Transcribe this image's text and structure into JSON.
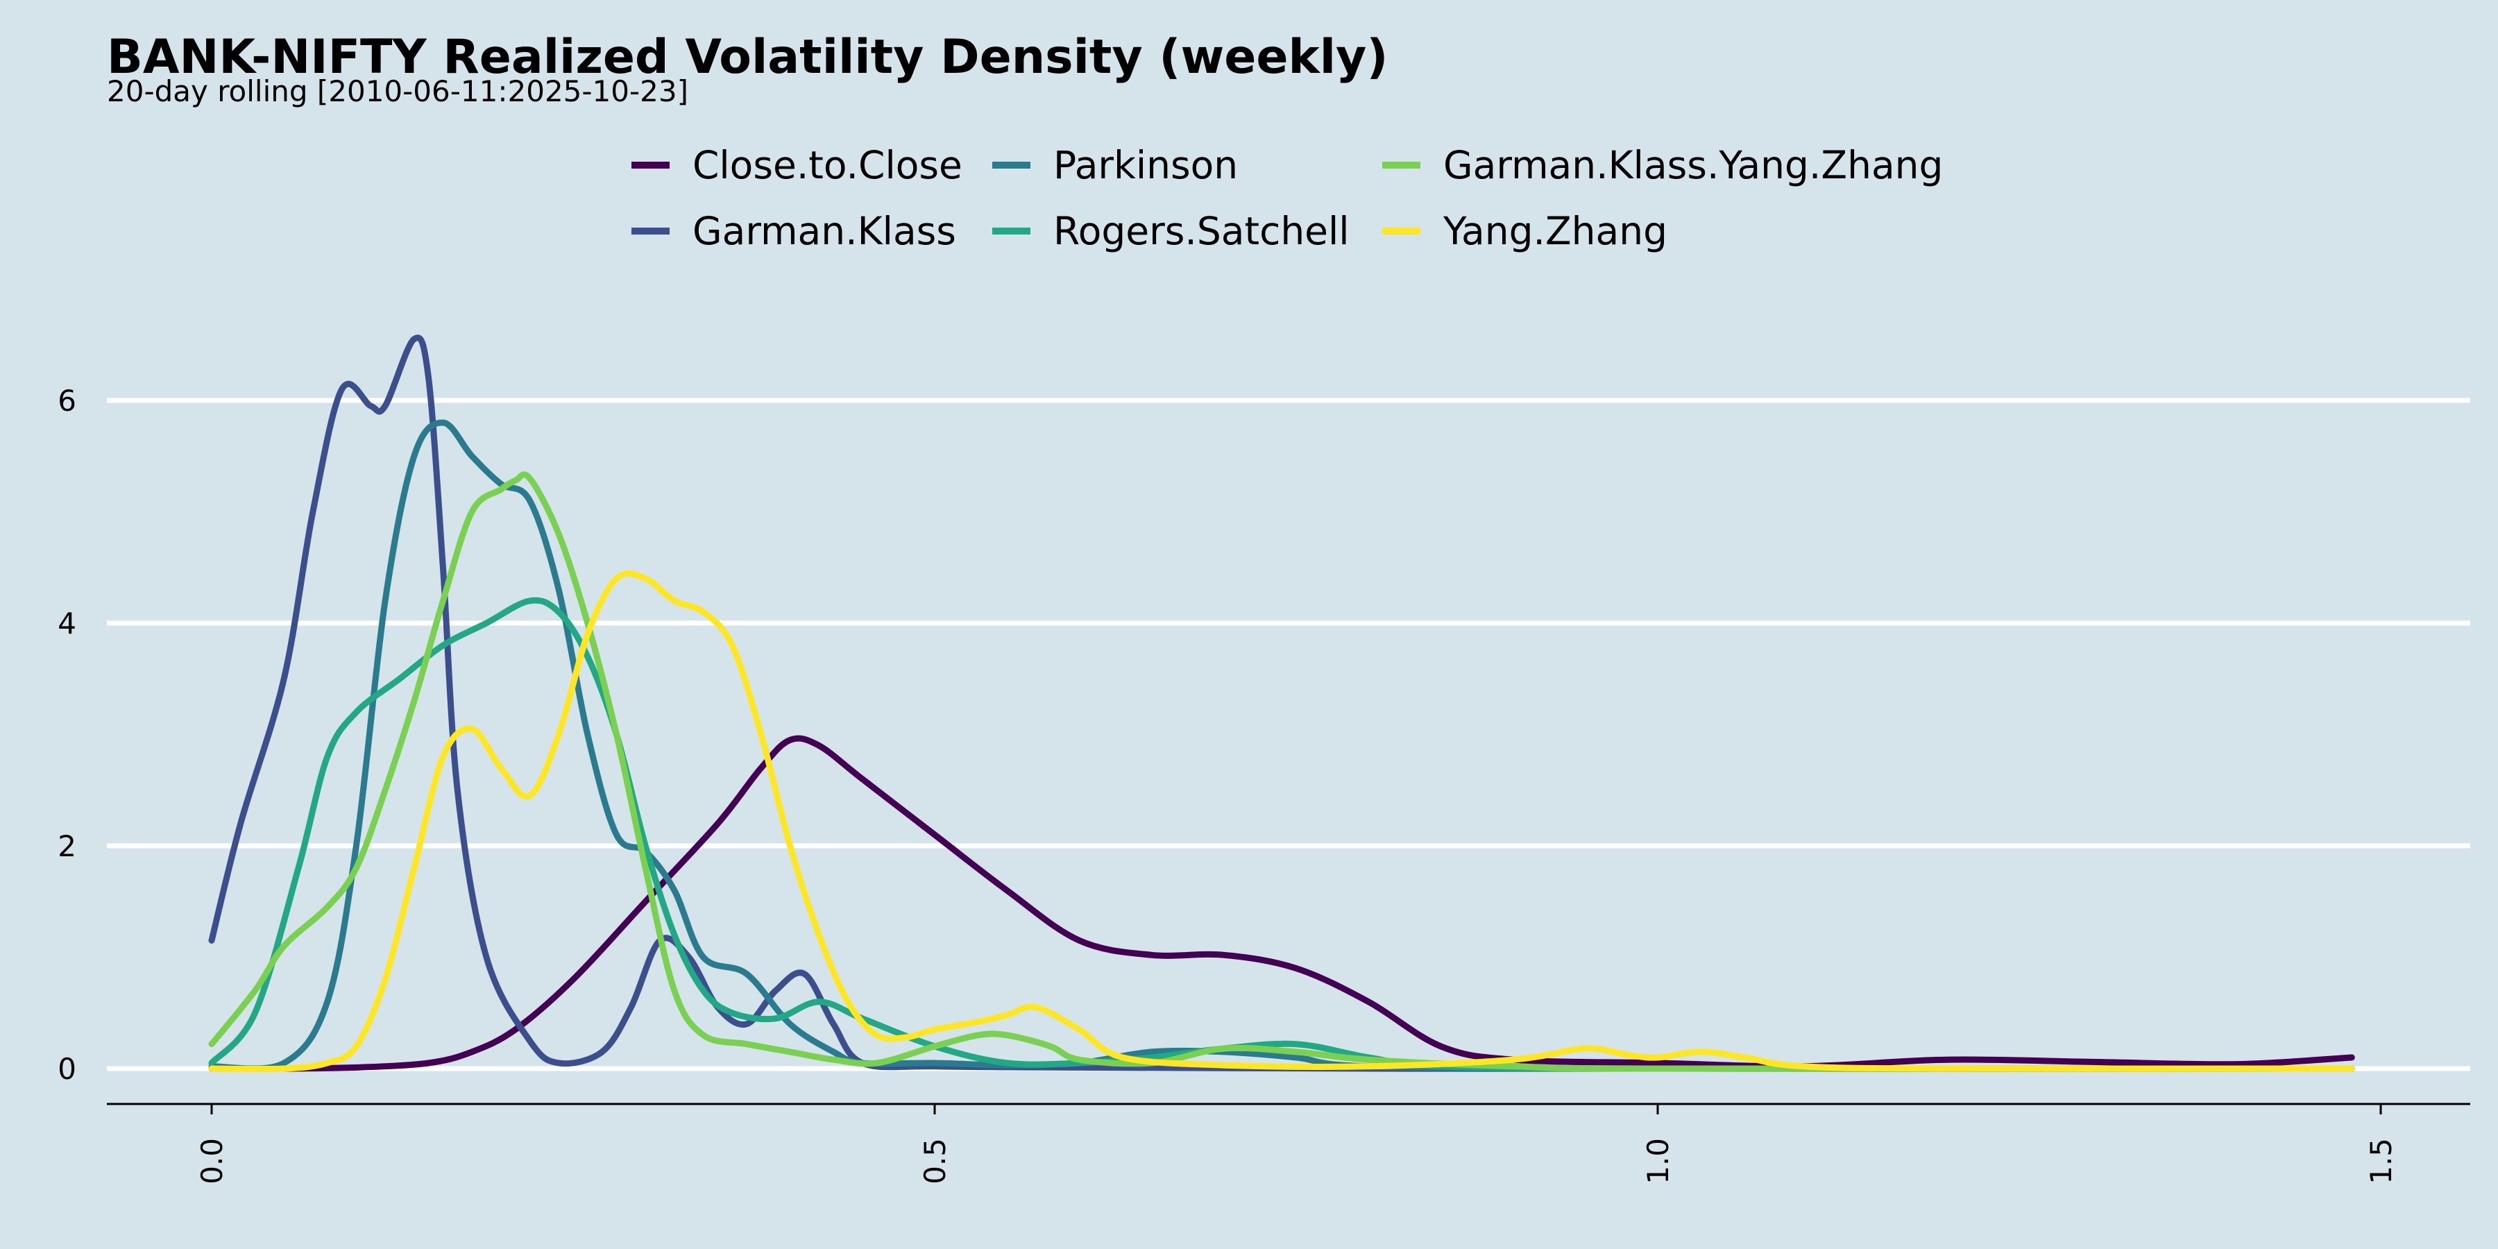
{
  "chart_data": {
    "type": "line",
    "title": "BANK-NIFTY Realized Volatility Density (weekly)",
    "subtitle": "20-day rolling [2010-06-11:2025-10-23]",
    "xlim": [
      -0.07,
      1.55
    ],
    "ylim": [
      -0.3,
      7.0
    ],
    "x_ticks": [
      0.0,
      0.5,
      1.0,
      1.5
    ],
    "x_tick_labels": [
      "0.0",
      "0.5",
      "1.0",
      "1.5"
    ],
    "y_ticks": [
      0,
      2,
      4,
      6
    ],
    "y_tick_labels": [
      "0",
      "2",
      "4",
      "6"
    ],
    "grid": "horizontal",
    "legend_position": "top-center",
    "series": [
      {
        "name": "Close.to.Close",
        "color": "#440154",
        "points": [
          [
            0,
            0
          ],
          [
            0.05,
            0
          ],
          [
            0.1,
            0.01
          ],
          [
            0.15,
            0.05
          ],
          [
            0.18,
            0.15
          ],
          [
            0.21,
            0.35
          ],
          [
            0.25,
            0.8
          ],
          [
            0.3,
            1.5
          ],
          [
            0.35,
            2.2
          ],
          [
            0.38,
            2.7
          ],
          [
            0.4,
            2.95
          ],
          [
            0.42,
            2.9
          ],
          [
            0.45,
            2.6
          ],
          [
            0.5,
            2.1
          ],
          [
            0.55,
            1.6
          ],
          [
            0.6,
            1.15
          ],
          [
            0.65,
            1.02
          ],
          [
            0.7,
            1.02
          ],
          [
            0.75,
            0.9
          ],
          [
            0.8,
            0.6
          ],
          [
            0.85,
            0.2
          ],
          [
            0.9,
            0.08
          ],
          [
            1.0,
            0.05
          ],
          [
            1.1,
            0.02
          ],
          [
            1.2,
            0.08
          ],
          [
            1.3,
            0.06
          ],
          [
            1.4,
            0.04
          ],
          [
            1.48,
            0.1
          ]
        ]
      },
      {
        "name": "Garman.Klass",
        "color": "#3b4f8c",
        "points": [
          [
            0.0,
            1.15
          ],
          [
            0.02,
            2.2
          ],
          [
            0.05,
            3.5
          ],
          [
            0.07,
            5.0
          ],
          [
            0.09,
            6.1
          ],
          [
            0.11,
            5.95
          ],
          [
            0.12,
            5.95
          ],
          [
            0.14,
            6.55
          ],
          [
            0.15,
            6.2
          ],
          [
            0.16,
            4.5
          ],
          [
            0.17,
            2.5
          ],
          [
            0.19,
            1.0
          ],
          [
            0.22,
            0.25
          ],
          [
            0.24,
            0.05
          ],
          [
            0.27,
            0.15
          ],
          [
            0.29,
            0.55
          ],
          [
            0.31,
            1.15
          ],
          [
            0.33,
            1.0
          ],
          [
            0.35,
            0.55
          ],
          [
            0.37,
            0.4
          ],
          [
            0.39,
            0.7
          ],
          [
            0.41,
            0.85
          ],
          [
            0.43,
            0.4
          ],
          [
            0.45,
            0.05
          ],
          [
            0.5,
            0.02
          ],
          [
            0.6,
            0.01
          ],
          [
            0.8,
            0
          ],
          [
            1.0,
            0
          ],
          [
            1.48,
            0
          ]
        ]
      },
      {
        "name": "Parkinson",
        "color": "#2a7b8e",
        "points": [
          [
            0.0,
            0.02
          ],
          [
            0.05,
            0.05
          ],
          [
            0.08,
            0.6
          ],
          [
            0.1,
            2.0
          ],
          [
            0.12,
            4.2
          ],
          [
            0.14,
            5.5
          ],
          [
            0.16,
            5.8
          ],
          [
            0.18,
            5.5
          ],
          [
            0.2,
            5.25
          ],
          [
            0.22,
            5.1
          ],
          [
            0.24,
            4.3
          ],
          [
            0.26,
            3.0
          ],
          [
            0.28,
            2.1
          ],
          [
            0.3,
            1.95
          ],
          [
            0.32,
            1.6
          ],
          [
            0.34,
            1.0
          ],
          [
            0.37,
            0.85
          ],
          [
            0.4,
            0.4
          ],
          [
            0.43,
            0.15
          ],
          [
            0.45,
            0.05
          ],
          [
            0.5,
            0.05
          ],
          [
            0.55,
            0.03
          ],
          [
            0.6,
            0.05
          ],
          [
            0.65,
            0.15
          ],
          [
            0.7,
            0.15
          ],
          [
            0.75,
            0.1
          ],
          [
            0.8,
            0.02
          ],
          [
            1.0,
            0
          ],
          [
            1.48,
            0
          ]
        ]
      },
      {
        "name": "Rogers.Satchell",
        "color": "#22a884",
        "points": [
          [
            0.0,
            0.05
          ],
          [
            0.03,
            0.5
          ],
          [
            0.06,
            1.8
          ],
          [
            0.08,
            2.8
          ],
          [
            0.1,
            3.2
          ],
          [
            0.13,
            3.5
          ],
          [
            0.16,
            3.8
          ],
          [
            0.19,
            4.0
          ],
          [
            0.22,
            4.2
          ],
          [
            0.24,
            4.1
          ],
          [
            0.26,
            3.7
          ],
          [
            0.28,
            3.0
          ],
          [
            0.3,
            2.0
          ],
          [
            0.32,
            1.2
          ],
          [
            0.34,
            0.7
          ],
          [
            0.36,
            0.5
          ],
          [
            0.39,
            0.45
          ],
          [
            0.42,
            0.6
          ],
          [
            0.45,
            0.45
          ],
          [
            0.5,
            0.2
          ],
          [
            0.55,
            0.05
          ],
          [
            0.6,
            0.05
          ],
          [
            0.65,
            0.1
          ],
          [
            0.7,
            0.18
          ],
          [
            0.75,
            0.22
          ],
          [
            0.8,
            0.1
          ],
          [
            0.85,
            0.02
          ],
          [
            1.0,
            0
          ],
          [
            1.48,
            0
          ]
        ]
      },
      {
        "name": "Garman.Klass.Yang.Zhang",
        "color": "#7ad151",
        "points": [
          [
            0.0,
            0.22
          ],
          [
            0.03,
            0.7
          ],
          [
            0.05,
            1.1
          ],
          [
            0.08,
            1.45
          ],
          [
            0.1,
            1.8
          ],
          [
            0.12,
            2.5
          ],
          [
            0.14,
            3.3
          ],
          [
            0.16,
            4.2
          ],
          [
            0.18,
            5.0
          ],
          [
            0.2,
            5.2
          ],
          [
            0.21,
            5.28
          ],
          [
            0.22,
            5.3
          ],
          [
            0.24,
            4.8
          ],
          [
            0.26,
            4.0
          ],
          [
            0.28,
            3.0
          ],
          [
            0.3,
            1.8
          ],
          [
            0.32,
            0.7
          ],
          [
            0.34,
            0.3
          ],
          [
            0.37,
            0.22
          ],
          [
            0.4,
            0.15
          ],
          [
            0.43,
            0.08
          ],
          [
            0.46,
            0.05
          ],
          [
            0.5,
            0.2
          ],
          [
            0.53,
            0.3
          ],
          [
            0.55,
            0.3
          ],
          [
            0.58,
            0.2
          ],
          [
            0.6,
            0.08
          ],
          [
            0.65,
            0.05
          ],
          [
            0.7,
            0.18
          ],
          [
            0.75,
            0.15
          ],
          [
            0.8,
            0.08
          ],
          [
            0.9,
            0.02
          ],
          [
            1.0,
            0
          ],
          [
            1.48,
            0
          ]
        ]
      },
      {
        "name": "Yang.Zhang",
        "color": "#fde725",
        "points": [
          [
            0.0,
            0
          ],
          [
            0.05,
            0
          ],
          [
            0.08,
            0.05
          ],
          [
            0.1,
            0.2
          ],
          [
            0.12,
            0.8
          ],
          [
            0.14,
            1.8
          ],
          [
            0.16,
            2.8
          ],
          [
            0.18,
            3.05
          ],
          [
            0.2,
            2.7
          ],
          [
            0.22,
            2.45
          ],
          [
            0.24,
            3.0
          ],
          [
            0.26,
            3.9
          ],
          [
            0.28,
            4.4
          ],
          [
            0.3,
            4.4
          ],
          [
            0.32,
            4.2
          ],
          [
            0.34,
            4.1
          ],
          [
            0.36,
            3.8
          ],
          [
            0.38,
            3.0
          ],
          [
            0.4,
            2.0
          ],
          [
            0.42,
            1.2
          ],
          [
            0.44,
            0.6
          ],
          [
            0.46,
            0.3
          ],
          [
            0.48,
            0.28
          ],
          [
            0.5,
            0.35
          ],
          [
            0.53,
            0.42
          ],
          [
            0.55,
            0.48
          ],
          [
            0.57,
            0.55
          ],
          [
            0.6,
            0.35
          ],
          [
            0.63,
            0.1
          ],
          [
            0.7,
            0.03
          ],
          [
            0.8,
            0.02
          ],
          [
            0.9,
            0.08
          ],
          [
            0.95,
            0.18
          ],
          [
            0.98,
            0.12
          ],
          [
            1.0,
            0.1
          ],
          [
            1.03,
            0.15
          ],
          [
            1.06,
            0.1
          ],
          [
            1.1,
            0.02
          ],
          [
            1.2,
            0
          ],
          [
            1.48,
            0
          ]
        ]
      }
    ]
  }
}
